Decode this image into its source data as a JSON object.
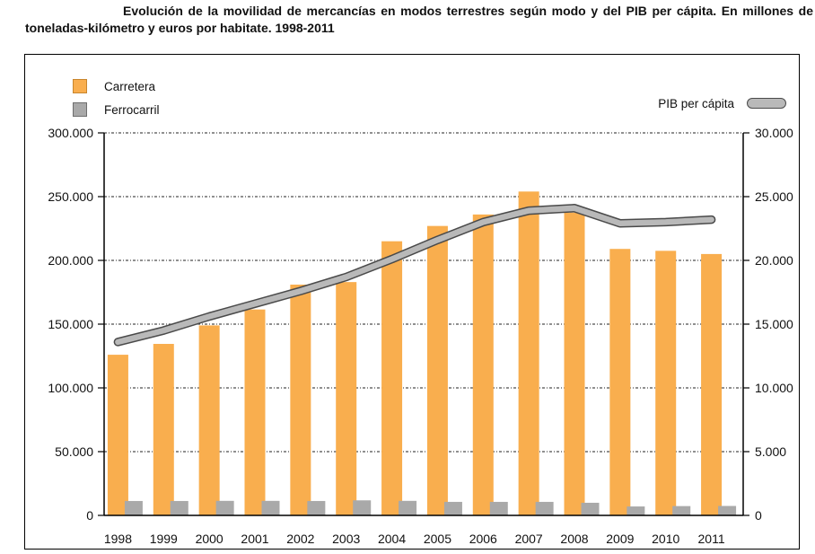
{
  "chart_data": {
    "type": "bar",
    "subtype": "grouped-bars-with-secondary-axis-line",
    "title": "Evolución de la movilidad de mercancías en modos terrestres según modo y del PIB per cápita. En millones de toneladas-kilómetro y euros por habitate. 1998-2011",
    "categories": [
      "1998",
      "1999",
      "2000",
      "2001",
      "2002",
      "2003",
      "2004",
      "2005",
      "2006",
      "2007",
      "2008",
      "2009",
      "2010",
      "2011"
    ],
    "series": [
      {
        "name": "Carretera",
        "type": "bar",
        "axis": "left",
        "color": "#F9AE4E",
        "values": [
          126000,
          134500,
          149000,
          161500,
          181000,
          183000,
          215000,
          227000,
          236000,
          254000,
          237500,
          209000,
          207500,
          205000
        ]
      },
      {
        "name": "Ferrocarril",
        "type": "bar",
        "axis": "left",
        "color": "#A9A9A9",
        "values": [
          11300,
          11300,
          11400,
          11400,
          11300,
          11800,
          11400,
          10600,
          10600,
          10600,
          9900,
          7000,
          7300,
          7400
        ]
      },
      {
        "name": "PIB per cápita",
        "type": "line",
        "axis": "right",
        "color": "#B9B9B9",
        "outline": "#4A4A4A",
        "values": [
          13600,
          14500,
          15600,
          16600,
          17600,
          18700,
          20100,
          21600,
          23000,
          23900,
          24100,
          22900,
          23000,
          23200
        ]
      }
    ],
    "left_axis": {
      "min": 0,
      "max": 300000,
      "ticks": [
        "0",
        "50.000",
        "100.000",
        "150.000",
        "200.000",
        "250.000",
        "300.000"
      ]
    },
    "right_axis": {
      "min": 0,
      "max": 30000,
      "ticks": [
        "0",
        "5.000",
        "10.000",
        "15.000",
        "20.000",
        "25.000",
        "30.000"
      ]
    },
    "xlabel": "",
    "ylabel_left": "",
    "ylabel_right": "",
    "grid": "dotted-horizontal",
    "legend_left_position": "top-left",
    "legend_line_position": "top-right",
    "swatch_borders": {
      "carretera": "#C8862E",
      "ferrocarril": "#6E6E6E",
      "pib_capsule": "#4A4A4A"
    }
  }
}
